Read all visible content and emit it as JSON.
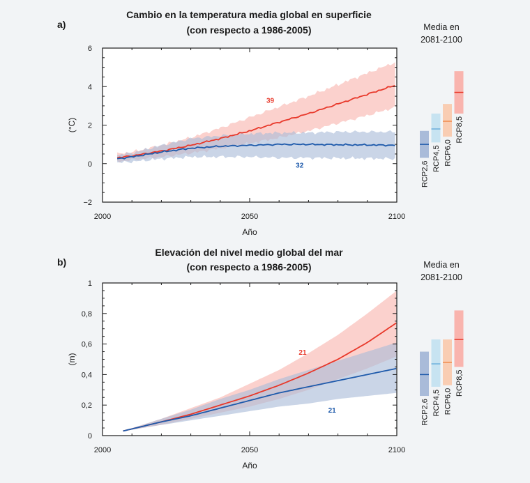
{
  "chart_data": [
    {
      "type": "line",
      "panel_label": "a)",
      "title_line1": "Cambio en la temperatura media global en superficie",
      "title_line2": "(con respecto a 1986-2005)",
      "xlabel": "Año",
      "ylabel": "(°C)",
      "xlim": [
        2000,
        2100
      ],
      "ylim": [
        -2,
        6
      ],
      "xticks": [
        2000,
        2050,
        2100
      ],
      "xtick_labels": [
        "2000",
        "2050",
        "2100"
      ],
      "yticks": [
        -2,
        0,
        2,
        4,
        6
      ],
      "ytick_labels": [
        "−2",
        "0",
        "2",
        "4",
        "6"
      ],
      "ywiggle": true,
      "series": [
        {
          "color": "#e8382a",
          "band_color": "#f9b4ae",
          "x": [
            2005,
            2010,
            2020,
            2030,
            2040,
            2050,
            2060,
            2070,
            2080,
            2090,
            2100
          ],
          "y": [
            0.3,
            0.4,
            0.65,
            0.95,
            1.3,
            1.7,
            2.15,
            2.6,
            3.1,
            3.6,
            4.1
          ],
          "lower": [
            0.1,
            0.2,
            0.35,
            0.55,
            0.8,
            1.05,
            1.35,
            1.7,
            2.1,
            2.5,
            2.95
          ],
          "upper": [
            0.5,
            0.6,
            0.95,
            1.35,
            1.85,
            2.4,
            2.95,
            3.5,
            4.1,
            4.7,
            5.3
          ],
          "count_label": "39",
          "count_at": [
            2057,
            3.15
          ]
        },
        {
          "color": "#1e5aab",
          "band_color": "#a9bbd9",
          "x": [
            2005,
            2010,
            2020,
            2030,
            2040,
            2050,
            2060,
            2070,
            2080,
            2090,
            2100
          ],
          "y": [
            0.25,
            0.35,
            0.6,
            0.8,
            0.9,
            0.95,
            1.0,
            1.0,
            0.98,
            0.97,
            0.95
          ],
          "lower": [
            0.05,
            0.1,
            0.25,
            0.35,
            0.35,
            0.35,
            0.3,
            0.3,
            0.28,
            0.27,
            0.25
          ],
          "upper": [
            0.45,
            0.55,
            0.95,
            1.3,
            1.45,
            1.55,
            1.6,
            1.6,
            1.65,
            1.65,
            1.65
          ],
          "count_label": "32",
          "count_at": [
            2067,
            -0.2
          ]
        }
      ],
      "media_title_line1": "Media en",
      "media_title_line2": "2081-2100",
      "media_bars": [
        {
          "label": "RCP2,6",
          "mean": 1.0,
          "low": 0.3,
          "high": 1.7,
          "fill": "#a9bbd9",
          "line": "#1e5aab"
        },
        {
          "label": "RCP4,5",
          "mean": 1.8,
          "low": 1.1,
          "high": 2.6,
          "fill": "#c7e3f1",
          "line": "#6aaedb"
        },
        {
          "label": "RCP6,0",
          "mean": 2.2,
          "low": 1.4,
          "high": 3.1,
          "fill": "#f9cdb3",
          "line": "#f08a4b"
        },
        {
          "label": "RCP8,5",
          "mean": 3.7,
          "low": 2.6,
          "high": 4.8,
          "fill": "#f9b4ae",
          "line": "#e8382a"
        }
      ]
    },
    {
      "type": "line",
      "panel_label": "b)",
      "title_line1": "Elevación del nivel medio global del mar",
      "title_line2": "(con respecto a 1986-2005)",
      "xlabel": "Año",
      "ylabel": "(m)",
      "xlim": [
        2000,
        2100
      ],
      "ylim": [
        0,
        1
      ],
      "xticks": [
        2000,
        2050,
        2100
      ],
      "xtick_labels": [
        "2000",
        "2050",
        "2100"
      ],
      "yticks": [
        0,
        0.2,
        0.4,
        0.6,
        0.8,
        1
      ],
      "ytick_labels": [
        "0",
        "0,2",
        "0,4",
        "0,6",
        "0,8",
        "1"
      ],
      "ywiggle": false,
      "series": [
        {
          "color": "#e8382a",
          "band_color": "#f9b4ae",
          "x": [
            2007,
            2020,
            2030,
            2040,
            2050,
            2060,
            2070,
            2080,
            2090,
            2100
          ],
          "y": [
            0.03,
            0.09,
            0.14,
            0.2,
            0.26,
            0.33,
            0.41,
            0.5,
            0.61,
            0.74
          ],
          "lower": [
            0.03,
            0.07,
            0.11,
            0.15,
            0.19,
            0.24,
            0.3,
            0.37,
            0.44,
            0.52
          ],
          "upper": [
            0.03,
            0.11,
            0.18,
            0.25,
            0.34,
            0.43,
            0.54,
            0.66,
            0.8,
            0.95
          ],
          "count_label": "21",
          "count_at": [
            2068,
            0.53
          ]
        },
        {
          "color": "#1e5aab",
          "band_color": "#a9bbd9",
          "x": [
            2007,
            2020,
            2030,
            2040,
            2050,
            2060,
            2070,
            2080,
            2090,
            2100
          ],
          "y": [
            0.03,
            0.09,
            0.13,
            0.18,
            0.23,
            0.28,
            0.32,
            0.36,
            0.4,
            0.44
          ],
          "lower": [
            0.03,
            0.07,
            0.1,
            0.13,
            0.16,
            0.19,
            0.21,
            0.24,
            0.26,
            0.28
          ],
          "upper": [
            0.03,
            0.11,
            0.17,
            0.24,
            0.3,
            0.37,
            0.43,
            0.49,
            0.55,
            0.61
          ],
          "count_label": "21",
          "count_at": [
            2078,
            0.15
          ]
        }
      ],
      "media_title_line1": "Media en",
      "media_title_line2": "2081-2100",
      "media_bars": [
        {
          "label": "RCP2,6",
          "mean": 0.4,
          "low": 0.26,
          "high": 0.55,
          "fill": "#a9bbd9",
          "line": "#1e5aab"
        },
        {
          "label": "RCP4,5",
          "mean": 0.47,
          "low": 0.32,
          "high": 0.63,
          "fill": "#c7e3f1",
          "line": "#6aaedb"
        },
        {
          "label": "RCP6,0",
          "mean": 0.48,
          "low": 0.33,
          "high": 0.63,
          "fill": "#f9cdb3",
          "line": "#f08a4b"
        },
        {
          "label": "RCP8,5",
          "mean": 0.63,
          "low": 0.45,
          "high": 0.82,
          "fill": "#f9b4ae",
          "line": "#e8382a"
        }
      ]
    }
  ]
}
